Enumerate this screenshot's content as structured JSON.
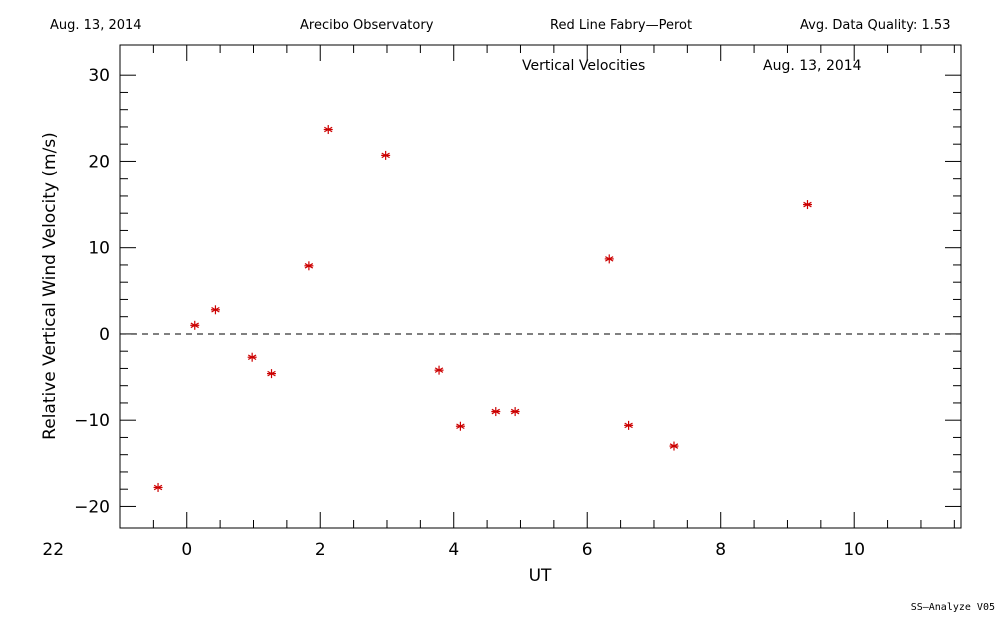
{
  "header": {
    "date": "Aug. 13, 2014",
    "site": "Arecibo Observatory",
    "instrument": "Red Line Fabry—Perot",
    "quality": "Avg. Data Quality: 1.53"
  },
  "footer": {
    "software": "SS—Analyze V05"
  },
  "chart_data": {
    "type": "scatter",
    "title": "Vertical Velocities",
    "subtitle": "Aug. 13, 2014",
    "xlabel": "UT",
    "ylabel": "Relative Vertical Wind Velocity (m/s)",
    "xlim": [
      -1.0,
      11.6
    ],
    "ylim": [
      -22.5,
      33.5
    ],
    "x_ticks": [
      22,
      0,
      2,
      4,
      6,
      8,
      10
    ],
    "y_ticks": [
      30,
      20,
      10,
      0,
      -10,
      -20
    ],
    "reference_line_y": 0,
    "marker_color": "#cc0000",
    "series": [
      {
        "points": [
          [
            -0.43,
            -17.8
          ],
          [
            0.12,
            1.0
          ],
          [
            0.43,
            2.8
          ],
          [
            0.98,
            -2.7
          ],
          [
            1.27,
            -4.6
          ],
          [
            1.83,
            7.9
          ],
          [
            2.12,
            23.7
          ],
          [
            2.98,
            20.7
          ],
          [
            3.78,
            -4.2
          ],
          [
            4.1,
            -10.7
          ],
          [
            4.63,
            -9.0
          ],
          [
            4.92,
            -9.0
          ],
          [
            6.33,
            8.7
          ],
          [
            6.62,
            -10.6
          ],
          [
            7.3,
            -13.0
          ],
          [
            9.3,
            15.0
          ]
        ]
      }
    ]
  }
}
